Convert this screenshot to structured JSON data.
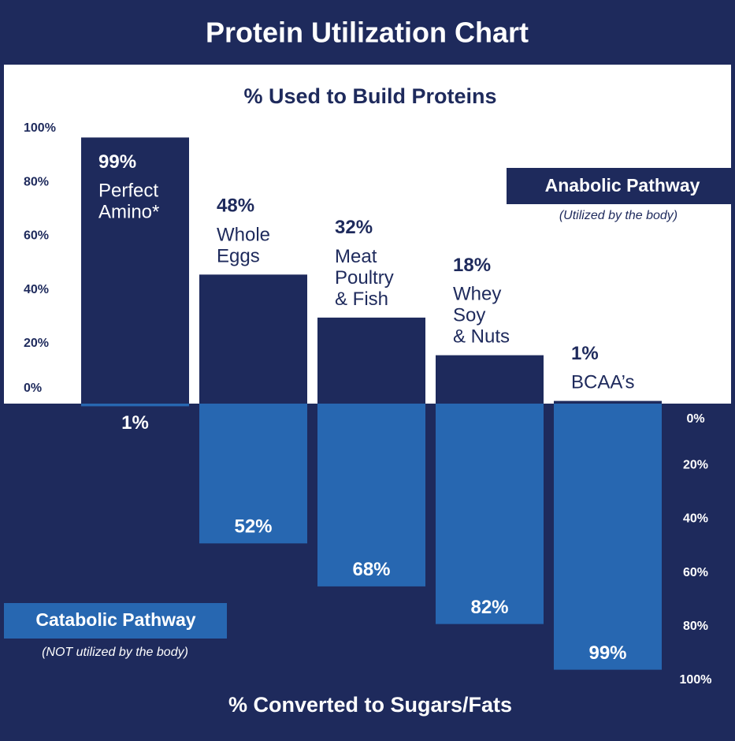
{
  "chart_data": {
    "type": "bar",
    "title": "Protein Utilization Chart",
    "categories": [
      "Perfect\nAmino*",
      "Whole\nEggs",
      "Meat\nPoultry\n& Fish",
      "Whey\nSoy\n& Nuts",
      "BCAA’s"
    ],
    "series": [
      {
        "name": "Anabolic Pathway",
        "note": "(Utilized by the body)",
        "color": "#1e2a5c",
        "axis": "y",
        "values": [
          99,
          48,
          32,
          18,
          1
        ],
        "value_labels": [
          "99%",
          "48%",
          "32%",
          "18%",
          "1%"
        ]
      },
      {
        "name": "Catabolic Pathway",
        "note": "(NOT utilized by the body)",
        "color": "#2767b1",
        "axis": "y2",
        "values": [
          1,
          52,
          68,
          82,
          99
        ],
        "value_labels": [
          "1%",
          "52%",
          "68%",
          "82%",
          "99%"
        ]
      }
    ],
    "ylabel": "% Used to Build Proteins",
    "y2label": "% Converted to Sugars/Fats",
    "ylim": [
      0,
      100
    ],
    "yticks": [
      {
        "value": 0,
        "label": "0%"
      },
      {
        "value": 20,
        "label": "20%"
      },
      {
        "value": 40,
        "label": "40%"
      },
      {
        "value": 60,
        "label": "60%"
      },
      {
        "value": 80,
        "label": "80%"
      },
      {
        "value": 100,
        "label": "100%"
      }
    ],
    "y2lim": [
      0,
      100
    ],
    "y2ticks": [
      {
        "value": 0,
        "label": "0%"
      },
      {
        "value": 20,
        "label": "20%"
      },
      {
        "value": 40,
        "label": "40%"
      },
      {
        "value": 60,
        "label": "60%"
      },
      {
        "value": 80,
        "label": "80%"
      },
      {
        "value": 100,
        "label": "100%"
      }
    ]
  }
}
